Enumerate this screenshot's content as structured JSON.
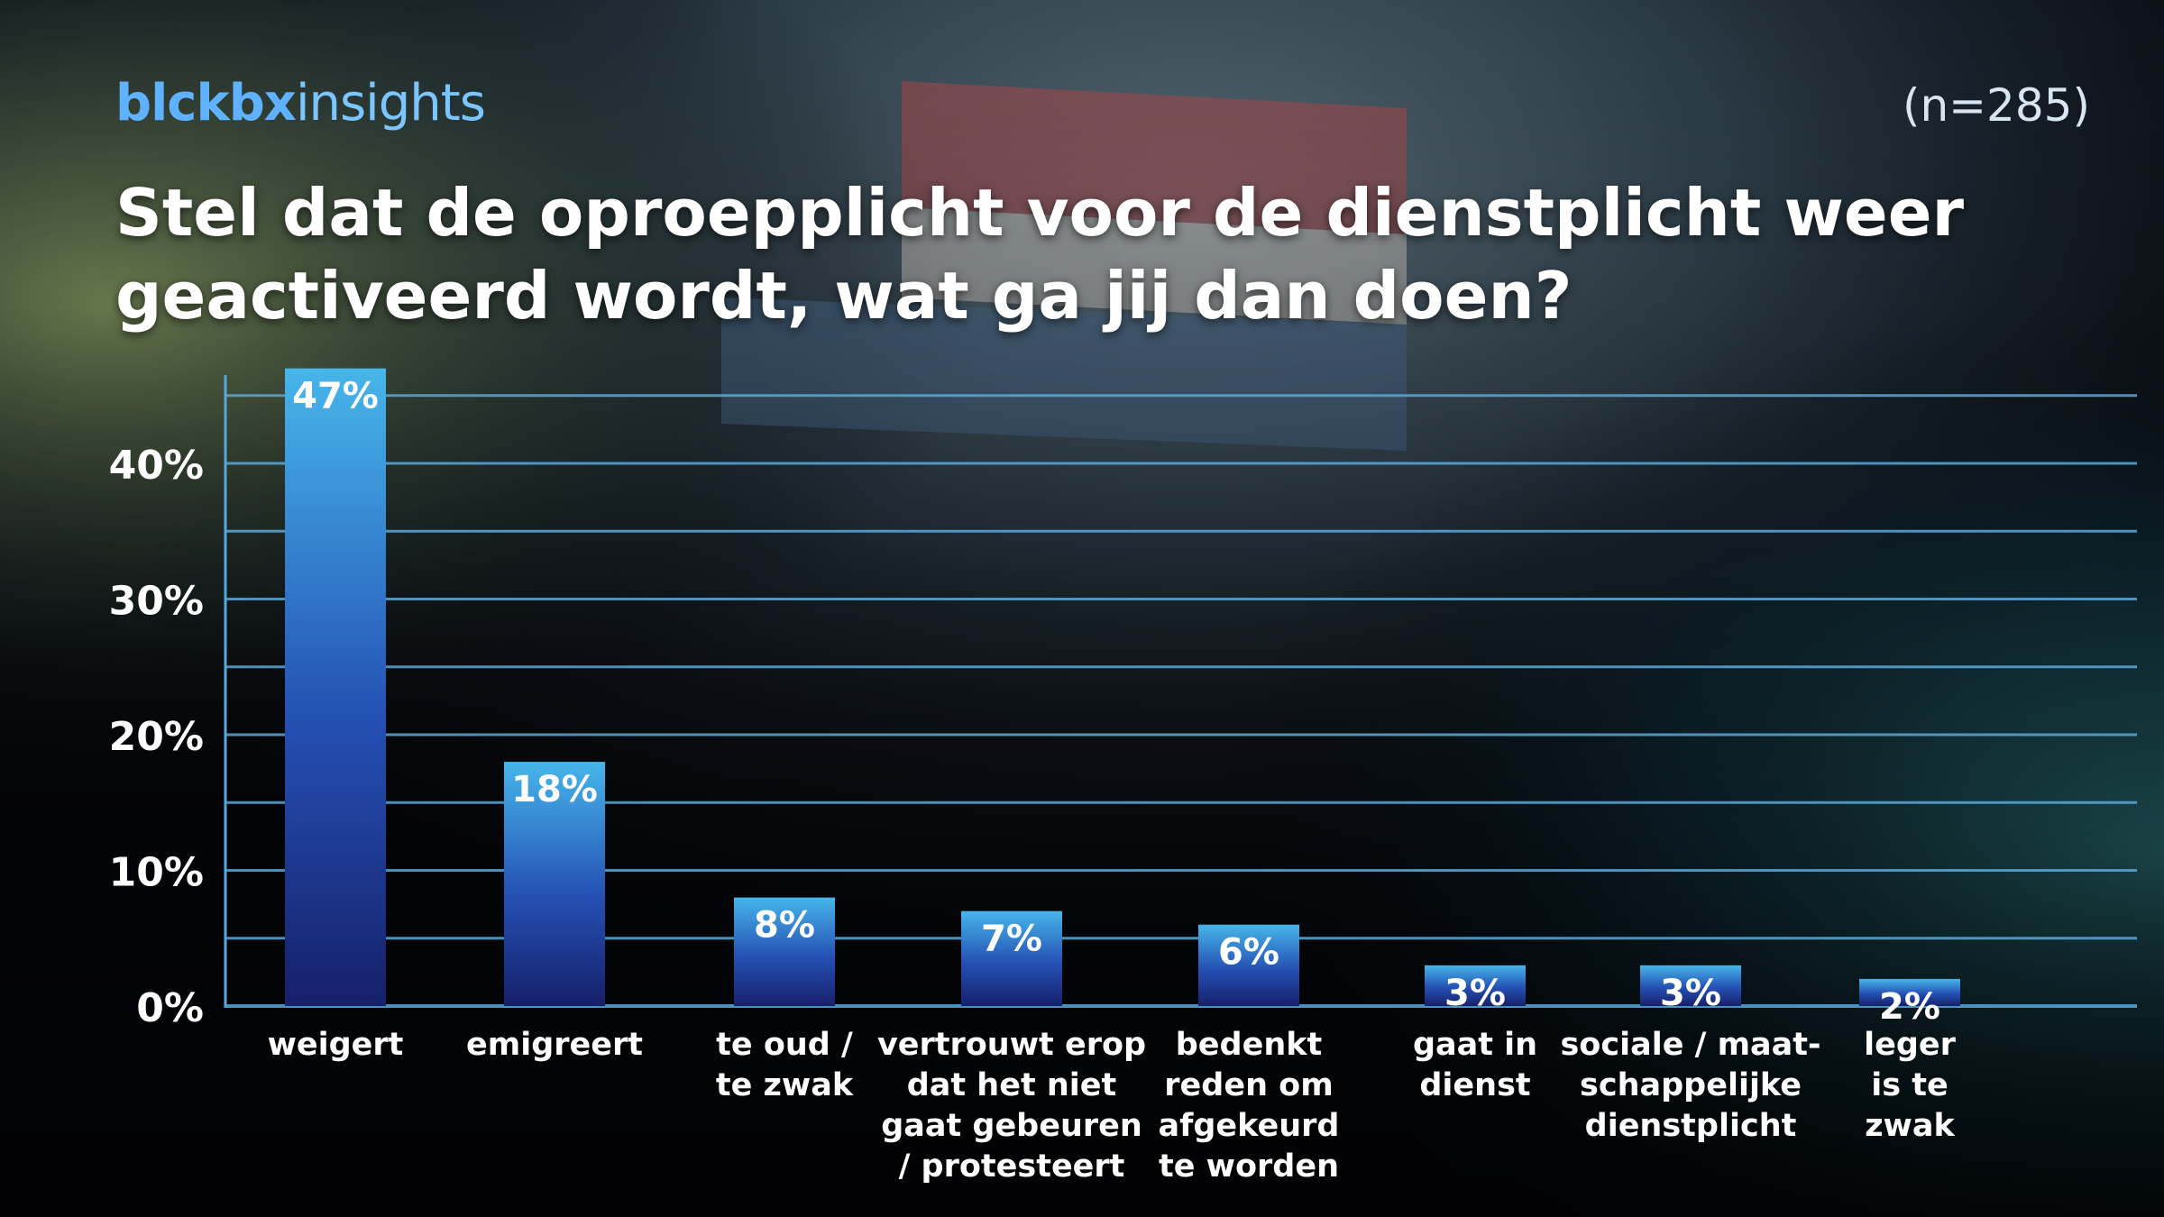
{
  "brand": {
    "part1": "blckbx",
    "part2": "insights"
  },
  "sample_size": "(n=285)",
  "colors": {
    "grid": "#5aa8d8",
    "bar_top": "#47b6ea",
    "bar_bottom": "#16206a",
    "brand": "#5cb8ff"
  },
  "chart_data": {
    "type": "bar",
    "title": "Stel dat de oproepplicht voor de dienstplicht weer geactiveerd wordt, wat ga jij dan doen?",
    "categories": [
      [
        "weigert"
      ],
      [
        "emigreert"
      ],
      [
        "te oud /",
        "te zwak"
      ],
      [
        "vertrouwt erop",
        "dat het niet",
        "gaat gebeuren",
        "/ protesteert"
      ],
      [
        "bedenkt",
        "reden om",
        "afgekeurd",
        "te worden"
      ],
      [
        "gaat in",
        "dienst"
      ],
      [
        "sociale / maat-",
        "schappelijke",
        "dienstplicht"
      ],
      [
        "leger",
        "is te",
        "zwak"
      ]
    ],
    "values": [
      47,
      18,
      8,
      7,
      6,
      3,
      3,
      2
    ],
    "value_labels": [
      "47%",
      "18%",
      "8%",
      "7%",
      "6%",
      "3%",
      "3%",
      "2%"
    ],
    "yticks": [
      0,
      10,
      20,
      30,
      40
    ],
    "ytick_labels": [
      "0%",
      "10%",
      "20%",
      "30%",
      "40%"
    ],
    "ylim": [
      0,
      45
    ],
    "grid": true,
    "xlabel": "",
    "ylabel": ""
  }
}
